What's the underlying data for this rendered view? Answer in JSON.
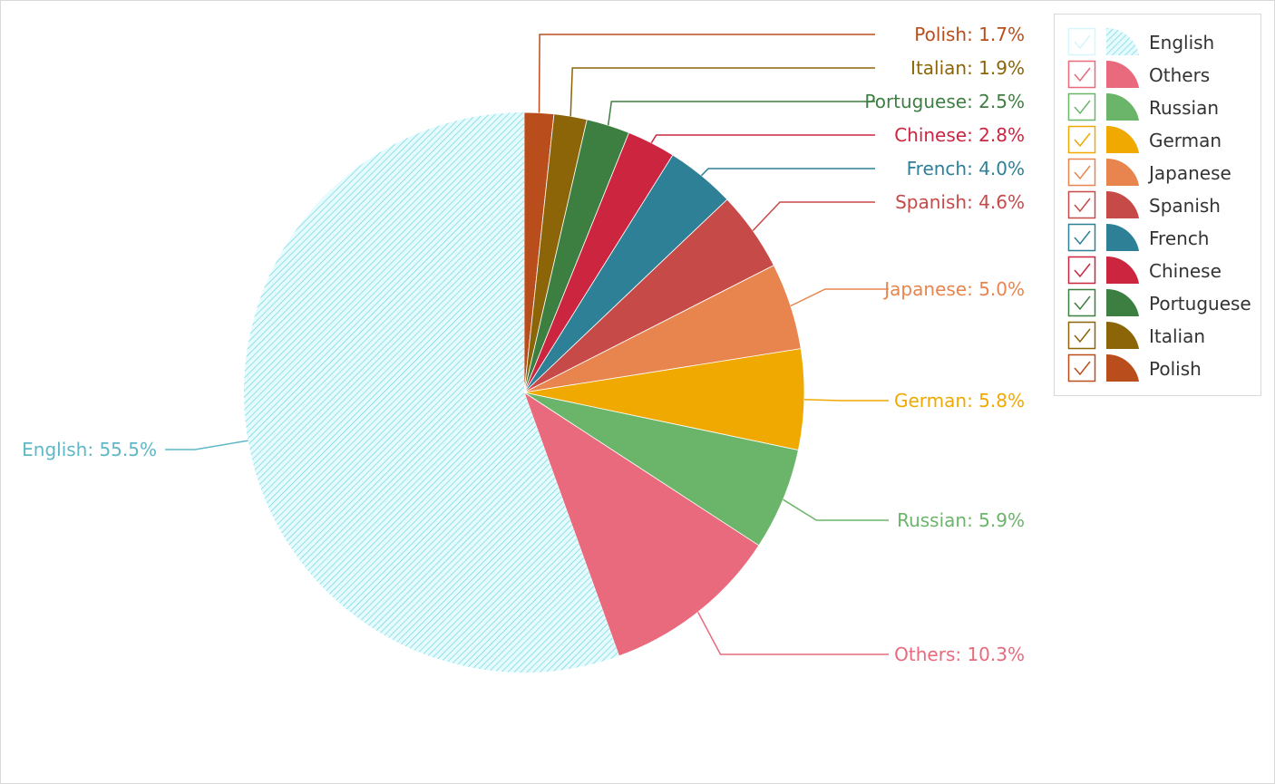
{
  "chart_data": {
    "type": "pie",
    "title": "",
    "legend_position": "top-right",
    "slices": [
      {
        "label": "Polish",
        "value": 1.7,
        "display": "Polish: 1.7%",
        "color": "#b94e1c"
      },
      {
        "label": "Italian",
        "value": 1.9,
        "display": "Italian: 1.9%",
        "color": "#8b6508"
      },
      {
        "label": "Portuguese",
        "value": 2.5,
        "display": "Portuguese: 2.5%",
        "color": "#3d7f41"
      },
      {
        "label": "Chinese",
        "value": 2.8,
        "display": "Chinese: 2.8%",
        "color": "#cc2540"
      },
      {
        "label": "French",
        "value": 4.0,
        "display": "French: 4.0%",
        "color": "#2e8096"
      },
      {
        "label": "Spanish",
        "value": 4.6,
        "display": "Spanish: 4.6%",
        "color": "#c64a48"
      },
      {
        "label": "Japanese",
        "value": 5.0,
        "display": "Japanese: 5.0%",
        "color": "#e8854f"
      },
      {
        "label": "German",
        "value": 5.8,
        "display": "German: 5.8%",
        "color": "#f0a900"
      },
      {
        "label": "Russian",
        "value": 5.9,
        "display": "Russian: 5.9%",
        "color": "#6bb56a"
      },
      {
        "label": "Others",
        "value": 10.3,
        "display": "Others: 10.3%",
        "color": "#e86a7c"
      },
      {
        "label": "English",
        "value": 55.5,
        "display": "English: 55.5%",
        "color": "#5fd3e0",
        "pattern": "hatched"
      }
    ],
    "legend": [
      {
        "label": "English",
        "color": "#5fd3e0",
        "pattern": "hatched"
      },
      {
        "label": "Others",
        "color": "#e86a7c"
      },
      {
        "label": "Russian",
        "color": "#6bb56a"
      },
      {
        "label": "German",
        "color": "#f0a900"
      },
      {
        "label": "Japanese",
        "color": "#e8854f"
      },
      {
        "label": "Spanish",
        "color": "#c64a48"
      },
      {
        "label": "French",
        "color": "#2e8096"
      },
      {
        "label": "Chinese",
        "color": "#cc2540"
      },
      {
        "label": "Portuguese",
        "color": "#3d7f41"
      },
      {
        "label": "Italian",
        "color": "#8b6508"
      },
      {
        "label": "Polish",
        "color": "#b94e1c"
      }
    ]
  }
}
